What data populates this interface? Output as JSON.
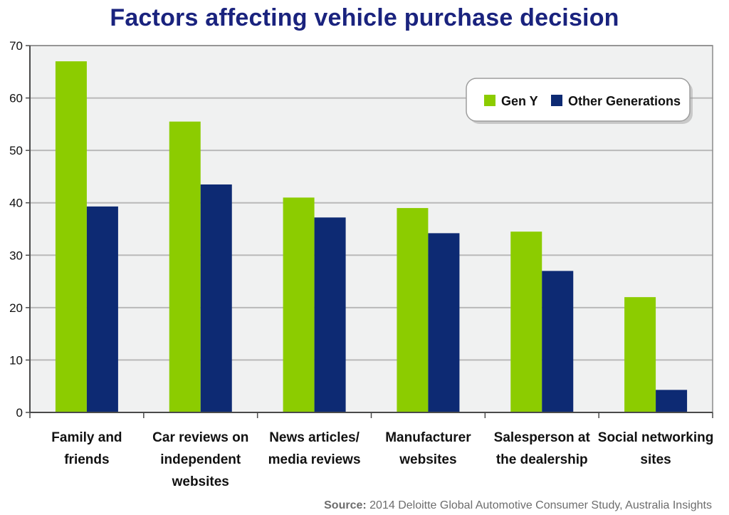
{
  "chart_data": {
    "type": "bar",
    "title": "Factors affecting vehicle purchase decision",
    "categories": [
      [
        "Family and",
        "friends"
      ],
      [
        "Car reviews on",
        "independent",
        "websites"
      ],
      [
        "News articles/",
        "media reviews"
      ],
      [
        "Manufacturer",
        "websites"
      ],
      [
        "Salesperson at",
        "the dealership"
      ],
      [
        "Social networking",
        "sites"
      ]
    ],
    "series": [
      {
        "name": "Gen Y",
        "color": "#8ccc00",
        "values": [
          67,
          55.5,
          41,
          39,
          34.5,
          22
        ]
      },
      {
        "name": "Other Generations",
        "color": "#0d2a73",
        "values": [
          39.3,
          43.5,
          37.2,
          34.2,
          27,
          4.3
        ]
      }
    ],
    "ylim": [
      0,
      70
    ],
    "yticks": [
      0,
      10,
      20,
      30,
      40,
      50,
      60,
      70
    ],
    "grid": true,
    "legend_position": "top-right",
    "xlabel": "",
    "ylabel": ""
  },
  "source": {
    "label": "Source:",
    "text": " 2014 Deloitte Global Automotive Consumer Study, Australia Insights"
  }
}
